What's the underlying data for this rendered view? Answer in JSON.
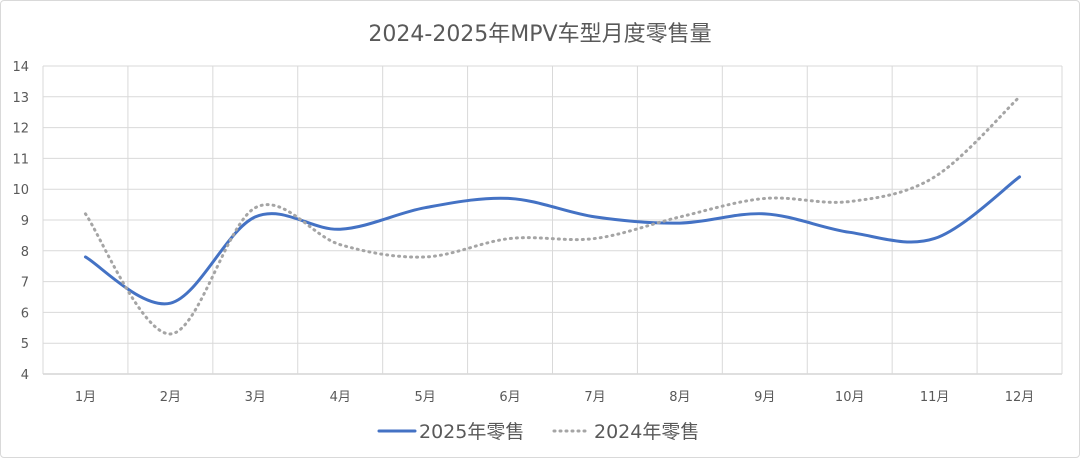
{
  "chart_data": {
    "type": "line",
    "title": "2024-2025年MPV车型月度零售量",
    "xlabel": "",
    "ylabel": "",
    "categories": [
      "1月",
      "2月",
      "3月",
      "4月",
      "5月",
      "6月",
      "7月",
      "8月",
      "9月",
      "10月",
      "11月",
      "12月"
    ],
    "ylim": [
      4,
      14
    ],
    "yticks": [
      4,
      5,
      6,
      7,
      8,
      9,
      10,
      11,
      12,
      13,
      14
    ],
    "grid": true,
    "legend_position": "bottom",
    "series": [
      {
        "name": "2025年零售",
        "style": "solid",
        "color": "#4472c4",
        "values": [
          7.8,
          6.3,
          9.1,
          8.7,
          9.4,
          9.7,
          9.1,
          8.9,
          9.2,
          8.6,
          8.4,
          10.4
        ]
      },
      {
        "name": "2024年零售",
        "style": "dotted",
        "color": "#a5a5a5",
        "values": [
          9.2,
          5.3,
          9.4,
          8.2,
          7.8,
          8.4,
          8.4,
          9.1,
          9.7,
          9.6,
          10.4,
          13.0
        ]
      }
    ]
  }
}
